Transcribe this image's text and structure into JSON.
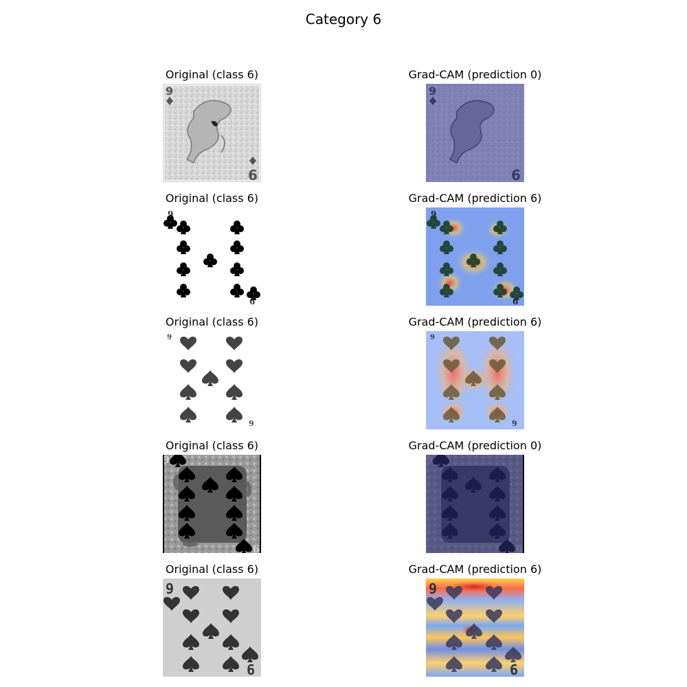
{
  "figure": {
    "title": "Category 6"
  },
  "rows": [
    {
      "original_title": "Original (class 6)",
      "gradcam_title": "Grad-CAM (prediction 0)",
      "card": {
        "corner_top": "9",
        "corner_bottom": "6",
        "suit": "diamond",
        "style": "dragon-art"
      }
    },
    {
      "original_title": "Original (class 6)",
      "gradcam_title": "Grad-CAM (prediction 6)",
      "card": {
        "corner_top": "9",
        "corner_bottom": "6",
        "suit": "club",
        "style": "pips"
      }
    },
    {
      "original_title": "Original (class 6)",
      "gradcam_title": "Grad-CAM (prediction 6)",
      "card": {
        "corner_top": "9",
        "corner_bottom": "9",
        "suit": "spade-heart-mix",
        "style": "pips"
      }
    },
    {
      "original_title": "Original (class 6)",
      "gradcam_title": "Grad-CAM (prediction 0)",
      "card": {
        "corner_top": "9",
        "corner_bottom": "6",
        "suit": "spade",
        "style": "ornate-dark"
      }
    },
    {
      "original_title": "Original (class 6)",
      "gradcam_title": "Grad-CAM (prediction 6)",
      "card": {
        "corner_top": "9",
        "corner_bottom": "6",
        "suit": "heart-spade-mix",
        "style": "pips-grey"
      }
    }
  ],
  "colors": {
    "cam_cool": "#3c3c9a",
    "cam_mid": "#7aa7f5",
    "cam_hot": "#ff4a3a",
    "cam_warm": "#ffd34a"
  }
}
